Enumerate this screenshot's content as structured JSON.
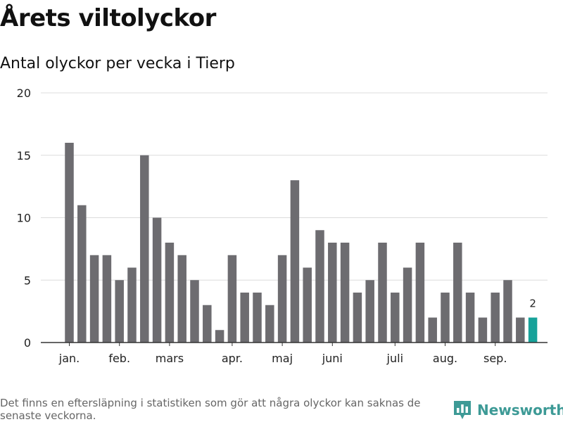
{
  "title": "Årets viltolyckor",
  "subtitle": "Antal olyckor per vecka i Tierp",
  "footnote": "Det finns en eftersläpning i statistiken som gör att några olyckor kan saknas de senaste veckorna.",
  "brand": {
    "name": "Newsworthy",
    "icon": "bar-chart-badge-icon",
    "color": "#3d9a96"
  },
  "chart_data": {
    "type": "bar",
    "title": "Antal olyckor per vecka i Tierp",
    "xlabel": "",
    "ylabel": "",
    "ylim": [
      0,
      20
    ],
    "yticks": [
      0,
      5,
      10,
      15,
      20
    ],
    "grid": true,
    "bar_color": "#6d6c70",
    "highlight_color": "#17a29a",
    "highlight_index": 37,
    "highlight_label": "2",
    "values": [
      16,
      11,
      7,
      7,
      5,
      6,
      15,
      10,
      8,
      7,
      5,
      3,
      1,
      7,
      4,
      4,
      3,
      7,
      13,
      6,
      9,
      8,
      8,
      4,
      5,
      8,
      4,
      6,
      8,
      2,
      4,
      8,
      4,
      2,
      4,
      5,
      2
    ],
    "month_labels": [
      {
        "label": "jan.",
        "bar": 0
      },
      {
        "label": "feb.",
        "bar": 4
      },
      {
        "label": "mars",
        "bar": 8
      },
      {
        "label": "apr.",
        "bar": 13
      },
      {
        "label": "maj",
        "bar": 17
      },
      {
        "label": "juni",
        "bar": 21
      },
      {
        "label": "juli",
        "bar": 26
      },
      {
        "label": "aug.",
        "bar": 30
      },
      {
        "label": "sep.",
        "bar": 34
      }
    ]
  }
}
